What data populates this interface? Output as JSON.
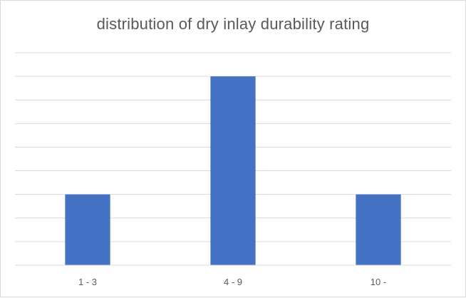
{
  "chart_data": {
    "type": "bar",
    "title": "distribution of dry inlay durability rating",
    "categories": [
      "1 - 3",
      "4 - 9",
      "10 -"
    ],
    "values": [
      3,
      8,
      3
    ],
    "ylim": [
      0,
      9
    ],
    "gridlines": true,
    "legend": "none",
    "bar_color": "#4472c4",
    "grid_color": "#d9d9d9"
  }
}
